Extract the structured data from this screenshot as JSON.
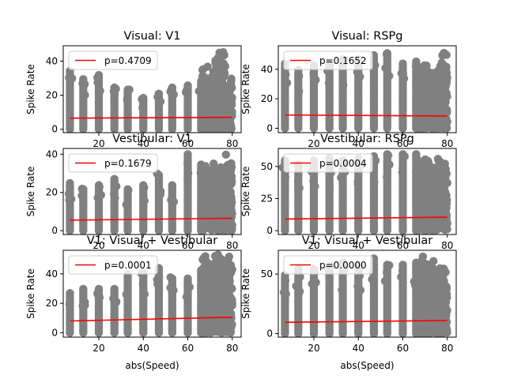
{
  "chart_data": [
    {
      "type": "scatter",
      "title": "Visual: V1",
      "xlabel": "",
      "ylabel": "Spike Rate",
      "xlim": [
        4,
        84
      ],
      "ylim": [
        -2,
        49
      ],
      "xticks": [
        20,
        40,
        60,
        80
      ],
      "yticks": [
        0,
        20,
        40
      ],
      "legend": {
        "placement": "upper-left",
        "entries": [
          "p=0.4709"
        ]
      },
      "fit_line": {
        "x": [
          7,
          80
        ],
        "y": [
          6.5,
          7.0
        ]
      },
      "point_max_by_speed": [
        [
          7,
          35
        ],
        [
          13,
          30
        ],
        [
          20,
          33
        ],
        [
          27,
          25
        ],
        [
          33,
          24
        ],
        [
          40,
          19
        ],
        [
          47,
          21
        ],
        [
          53,
          25
        ],
        [
          60,
          26
        ],
        [
          66,
          29
        ],
        [
          70,
          37
        ],
        [
          75,
          46
        ],
        [
          79,
          30
        ]
      ]
    },
    {
      "type": "scatter",
      "title": "Visual: RSPg",
      "xlabel": "",
      "ylabel": "Spike Rate",
      "xlim": [
        4,
        84
      ],
      "ylim": [
        -3,
        56
      ],
      "xticks": [
        20,
        40,
        60,
        80
      ],
      "yticks": [
        0,
        20,
        40
      ],
      "legend": {
        "placement": "upper-left",
        "entries": [
          "p=0.1652"
        ]
      },
      "fit_line": {
        "x": [
          7,
          80
        ],
        "y": [
          9.0,
          8.3
        ]
      },
      "point_max_by_speed": [
        [
          7,
          45
        ],
        [
          13,
          40
        ],
        [
          20,
          43
        ],
        [
          27,
          45
        ],
        [
          33,
          48
        ],
        [
          40,
          48
        ],
        [
          47,
          50
        ],
        [
          53,
          52
        ],
        [
          60,
          45
        ],
        [
          66,
          46
        ],
        [
          70,
          44
        ],
        [
          75,
          44
        ],
        [
          79,
          53
        ]
      ]
    },
    {
      "type": "scatter",
      "title": "Vestibular: V1",
      "xlabel": "",
      "ylabel": "Spike Rate",
      "xlim": [
        4,
        84
      ],
      "ylim": [
        -2,
        43
      ],
      "xticks": [
        20,
        40,
        60,
        80
      ],
      "yticks": [
        0,
        20,
        40
      ],
      "legend": {
        "placement": "upper-left",
        "entries": [
          "p=0.1679"
        ]
      },
      "fit_line": {
        "x": [
          7,
          80
        ],
        "y": [
          5.5,
          6.5
        ]
      },
      "point_max_by_speed": [
        [
          7,
          25
        ],
        [
          13,
          22
        ],
        [
          20,
          24
        ],
        [
          27,
          28
        ],
        [
          33,
          22
        ],
        [
          40,
          24
        ],
        [
          47,
          30
        ],
        [
          53,
          24
        ],
        [
          60,
          41
        ],
        [
          66,
          35
        ],
        [
          70,
          36
        ],
        [
          75,
          36
        ],
        [
          79,
          42
        ]
      ]
    },
    {
      "type": "scatter",
      "title": "Vestibular: RSPg",
      "xlabel": "",
      "ylabel": "Spike Rate",
      "xlim": [
        4,
        84
      ],
      "ylim": [
        -3,
        64
      ],
      "xticks": [
        20,
        40,
        60,
        80
      ],
      "yticks": [
        0,
        25,
        50
      ],
      "legend": {
        "placement": "upper-left",
        "entries": [
          "p=0.0004"
        ]
      },
      "fit_line": {
        "x": [
          7,
          80
        ],
        "y": [
          9.0,
          10.5
        ]
      },
      "point_max_by_speed": [
        [
          7,
          55
        ],
        [
          13,
          52
        ],
        [
          20,
          55
        ],
        [
          27,
          57
        ],
        [
          33,
          55
        ],
        [
          40,
          57
        ],
        [
          47,
          59
        ],
        [
          53,
          60
        ],
        [
          60,
          61
        ],
        [
          66,
          60
        ],
        [
          70,
          57
        ],
        [
          75,
          58
        ],
        [
          79,
          57
        ]
      ]
    },
    {
      "type": "scatter",
      "title": "V1: Visual + Vestibular",
      "xlabel": "abs(Speed)",
      "ylabel": "Spike Rate",
      "xlim": [
        4,
        84
      ],
      "ylim": [
        -3,
        56
      ],
      "xticks": [
        20,
        40,
        60,
        80
      ],
      "yticks": [
        0,
        20,
        40
      ],
      "legend": {
        "placement": "upper-left",
        "entries": [
          "p=0.0001"
        ]
      },
      "fit_line": {
        "x": [
          7,
          80
        ],
        "y": [
          8.0,
          10.5
        ]
      },
      "point_max_by_speed": [
        [
          7,
          28
        ],
        [
          13,
          30
        ],
        [
          20,
          30
        ],
        [
          27,
          31
        ],
        [
          33,
          40
        ],
        [
          40,
          42
        ],
        [
          47,
          45
        ],
        [
          53,
          38
        ],
        [
          60,
          37
        ],
        [
          66,
          43
        ],
        [
          70,
          52
        ],
        [
          75,
          53
        ],
        [
          79,
          55
        ]
      ]
    },
    {
      "type": "scatter",
      "title": "V1: Visual + Vestibular",
      "xlabel": "abs(Speed)",
      "ylabel": "Spike Rate",
      "xlim": [
        4,
        84
      ],
      "ylim": [
        -3,
        70
      ],
      "xticks": [
        20,
        40,
        60,
        80
      ],
      "yticks": [
        0,
        50
      ],
      "legend": {
        "placement": "upper-left",
        "entries": [
          "p=0.0000"
        ]
      },
      "fit_line": {
        "x": [
          7,
          80
        ],
        "y": [
          9.5,
          11.0
        ]
      },
      "point_max_by_speed": [
        [
          7,
          50
        ],
        [
          13,
          55
        ],
        [
          20,
          55
        ],
        [
          27,
          57
        ],
        [
          33,
          60
        ],
        [
          40,
          58
        ],
        [
          47,
          64
        ],
        [
          53,
          58
        ],
        [
          60,
          59
        ],
        [
          66,
          60
        ],
        [
          70,
          66
        ],
        [
          75,
          63
        ],
        [
          79,
          60
        ]
      ]
    }
  ],
  "colors": {
    "points": "#808080",
    "fit_line": "#ff0000",
    "axes": "#000000"
  }
}
